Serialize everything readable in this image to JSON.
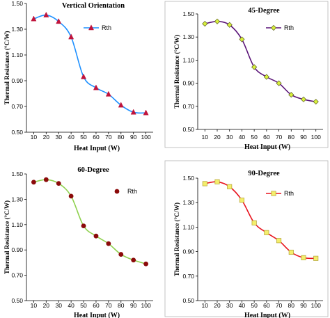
{
  "chart_data": [
    {
      "type": "line",
      "title": "Vertical Orientation",
      "xlabel": "Heat Input (W)",
      "ylabel": "Thermal Resistance (°C/W)",
      "x": [
        10,
        20,
        30,
        40,
        50,
        60,
        70,
        80,
        90,
        100
      ],
      "ylim": [
        0.5,
        1.5
      ],
      "yticks": [
        "0.50",
        "0.70",
        "0.90",
        "1.10",
        "1.30",
        "1.50"
      ],
      "ytick_values": [
        0.5,
        0.7,
        0.9,
        1.1,
        1.3,
        1.5
      ],
      "grid": false,
      "legend_position": "top-right",
      "series": [
        {
          "name": "Rth",
          "values": [
            1.38,
            1.41,
            1.36,
            1.24,
            0.93,
            0.845,
            0.795,
            0.71,
            0.655,
            0.65
          ],
          "color": "#1e90ff",
          "marker": "triangle",
          "marker_color": "#c0143c"
        }
      ]
    },
    {
      "type": "line",
      "title": "45-Degree",
      "xlabel": "Heat Input (W)",
      "ylabel": "Thermal Resistance (°C/W)",
      "x": [
        10,
        20,
        30,
        40,
        50,
        60,
        70,
        80,
        90,
        100
      ],
      "ylim": [
        0.5,
        1.5
      ],
      "yticks": [
        "0.50",
        "0.70",
        "0.90",
        "1.10",
        "1.30",
        "1.50"
      ],
      "ytick_values": [
        0.5,
        0.7,
        0.9,
        1.1,
        1.3,
        1.5
      ],
      "grid": false,
      "legend_position": "top-right",
      "series": [
        {
          "name": "Rth",
          "values": [
            1.415,
            1.435,
            1.405,
            1.28,
            1.04,
            0.955,
            0.9,
            0.8,
            0.76,
            0.74
          ],
          "color": "#5a1478",
          "marker": "diamond",
          "marker_color": "#d8f03c"
        }
      ]
    },
    {
      "type": "line",
      "title": "60-Degree",
      "xlabel": "Heat Input (W)",
      "ylabel": "Thermal Resistance (°C/W)",
      "x": [
        10,
        20,
        30,
        40,
        50,
        60,
        70,
        80,
        90,
        100
      ],
      "ylim": [
        0.5,
        1.5
      ],
      "yticks": [
        "0.50",
        "0.70",
        "0.90",
        "1.10",
        "1.30",
        "1.50"
      ],
      "ytick_values": [
        0.5,
        0.7,
        0.9,
        1.1,
        1.3,
        1.5
      ],
      "grid": false,
      "legend_position": "top-right",
      "series": [
        {
          "name": "Rth",
          "values": [
            1.435,
            1.455,
            1.425,
            1.325,
            1.09,
            1.01,
            0.95,
            0.865,
            0.82,
            0.79
          ],
          "color": "#8fd14f",
          "marker": "circle",
          "marker_color": "#8b0a0a",
          "line_visible_in_legend": false
        }
      ]
    },
    {
      "type": "line",
      "title": "90-Degree",
      "xlabel": "Heat Input (W)",
      "ylabel": "Thermal Resistance (°C/W)",
      "x": [
        10,
        20,
        30,
        40,
        50,
        60,
        70,
        80,
        90,
        100
      ],
      "ylim": [
        0.5,
        1.5
      ],
      "yticks": [
        "0.50",
        "0.70",
        "0.90",
        "1.10",
        "1.30",
        "1.50"
      ],
      "ytick_values": [
        0.5,
        0.7,
        0.9,
        1.1,
        1.3,
        1.5
      ],
      "grid": false,
      "legend_position": "top-right",
      "series": [
        {
          "name": "Rth",
          "values": [
            1.455,
            1.47,
            1.43,
            1.32,
            1.135,
            1.055,
            0.99,
            0.895,
            0.85,
            0.845
          ],
          "color": "#e8141e",
          "marker": "square",
          "marker_color": "#f4ee6c"
        }
      ]
    }
  ]
}
